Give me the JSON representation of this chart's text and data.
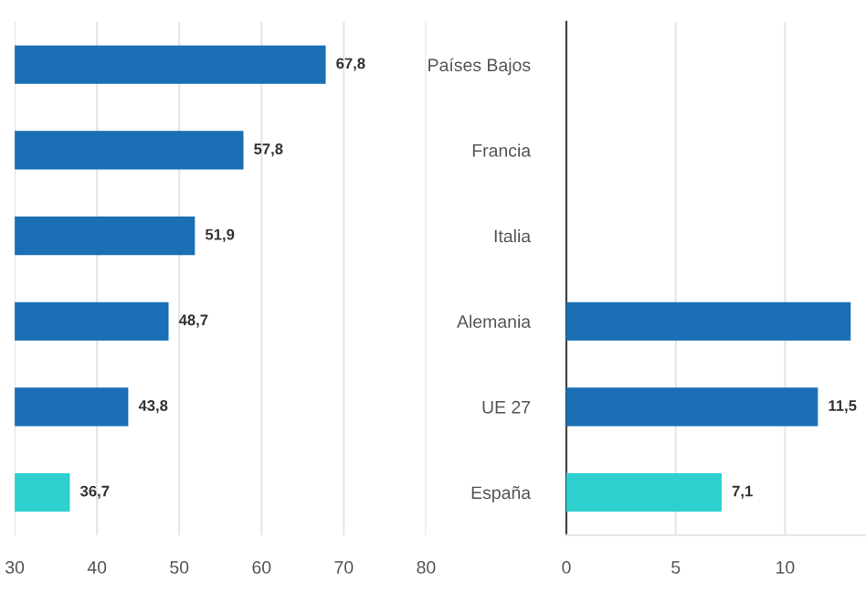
{
  "chart_data": [
    {
      "type": "bar",
      "orientation": "horizontal",
      "categories": [
        null,
        null,
        null,
        null,
        null,
        null
      ],
      "values": [
        67.8,
        57.8,
        51.9,
        48.7,
        43.8,
        36.7
      ],
      "colors": [
        "#1a6fb5",
        "#1a6fb5",
        "#1a6fb5",
        "#1a6fb5",
        "#1a6fb5",
        "#2ecfcf"
      ],
      "value_labels": [
        "67,8",
        "57,8",
        "51,9",
        "48,7",
        "43,8",
        "36,7"
      ],
      "xlim": [
        30,
        80
      ],
      "xticks": [
        30,
        40,
        50,
        60,
        70,
        80
      ],
      "grid": "x"
    },
    {
      "type": "bar",
      "orientation": "horizontal",
      "categories": [
        "Países Bajos",
        "Francia",
        "Italia",
        "Alemania",
        "UE 27",
        "España"
      ],
      "values": [
        null,
        null,
        null,
        13.0,
        11.5,
        7.1
      ],
      "colors": [
        "#1a6fb5",
        "#1a6fb5",
        "#1a6fb5",
        "#1a6fb5",
        "#1a6fb5",
        "#2ecfcf"
      ],
      "value_labels": [
        null,
        null,
        null,
        null,
        "11,5",
        "7,1"
      ],
      "xlim": [
        0,
        13.7
      ],
      "xticks": [
        0,
        5,
        10
      ],
      "grid": "x"
    }
  ]
}
